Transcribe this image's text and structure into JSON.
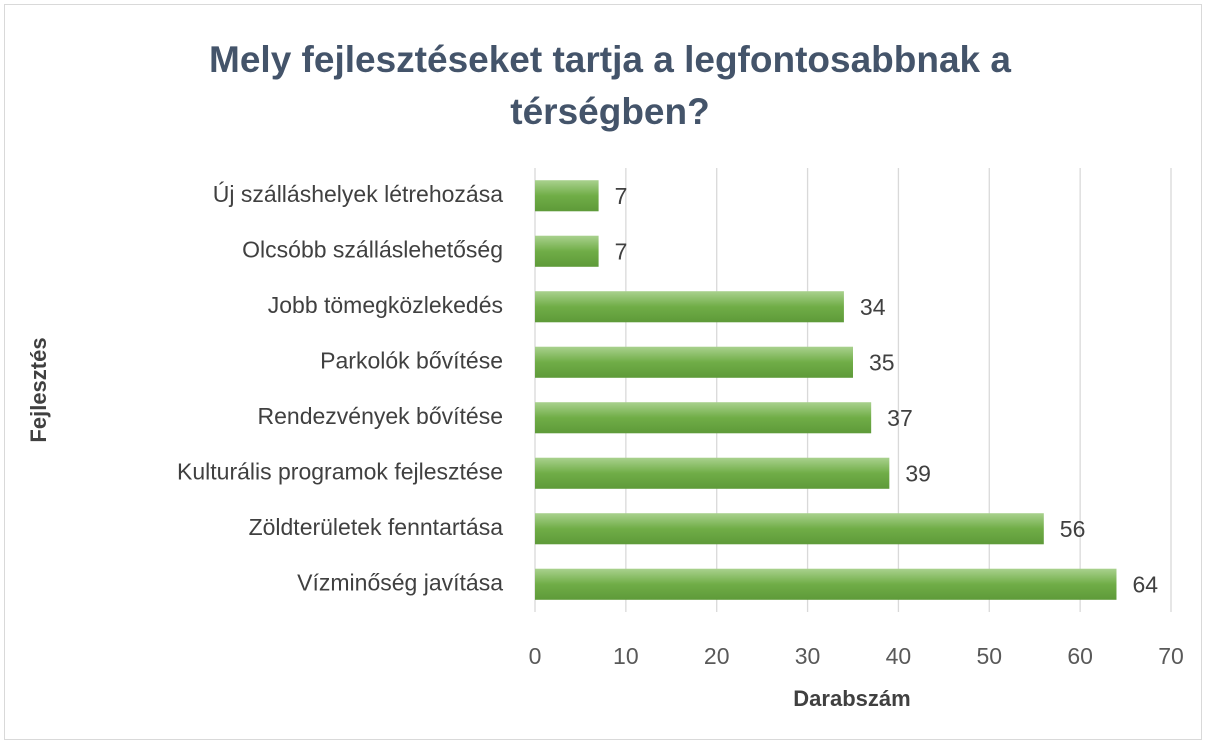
{
  "chart_data": {
    "type": "barh",
    "title": "Mely fejlesztéseket tartja a legfontosabbnak a térségben?",
    "xlabel": "Darabszám",
    "ylabel": "Fejlesztés",
    "categories": [
      "Új szálláshelyek létrehozása",
      "Olcsóbb szálláslehetőség",
      "Jobb tömegközlekedés",
      "Parkolók bővítése",
      "Rendezvények bővítése",
      "Kulturális programok fejlesztése",
      "Zöldterületek fenntartása",
      "Vízminőség javítása"
    ],
    "values": [
      7,
      7,
      34,
      35,
      37,
      39,
      56,
      64
    ],
    "color": "#70ad47",
    "xlim": [
      0,
      70
    ],
    "xticks": [
      0,
      10,
      20,
      30,
      40,
      50,
      60,
      70
    ],
    "grid": true
  }
}
